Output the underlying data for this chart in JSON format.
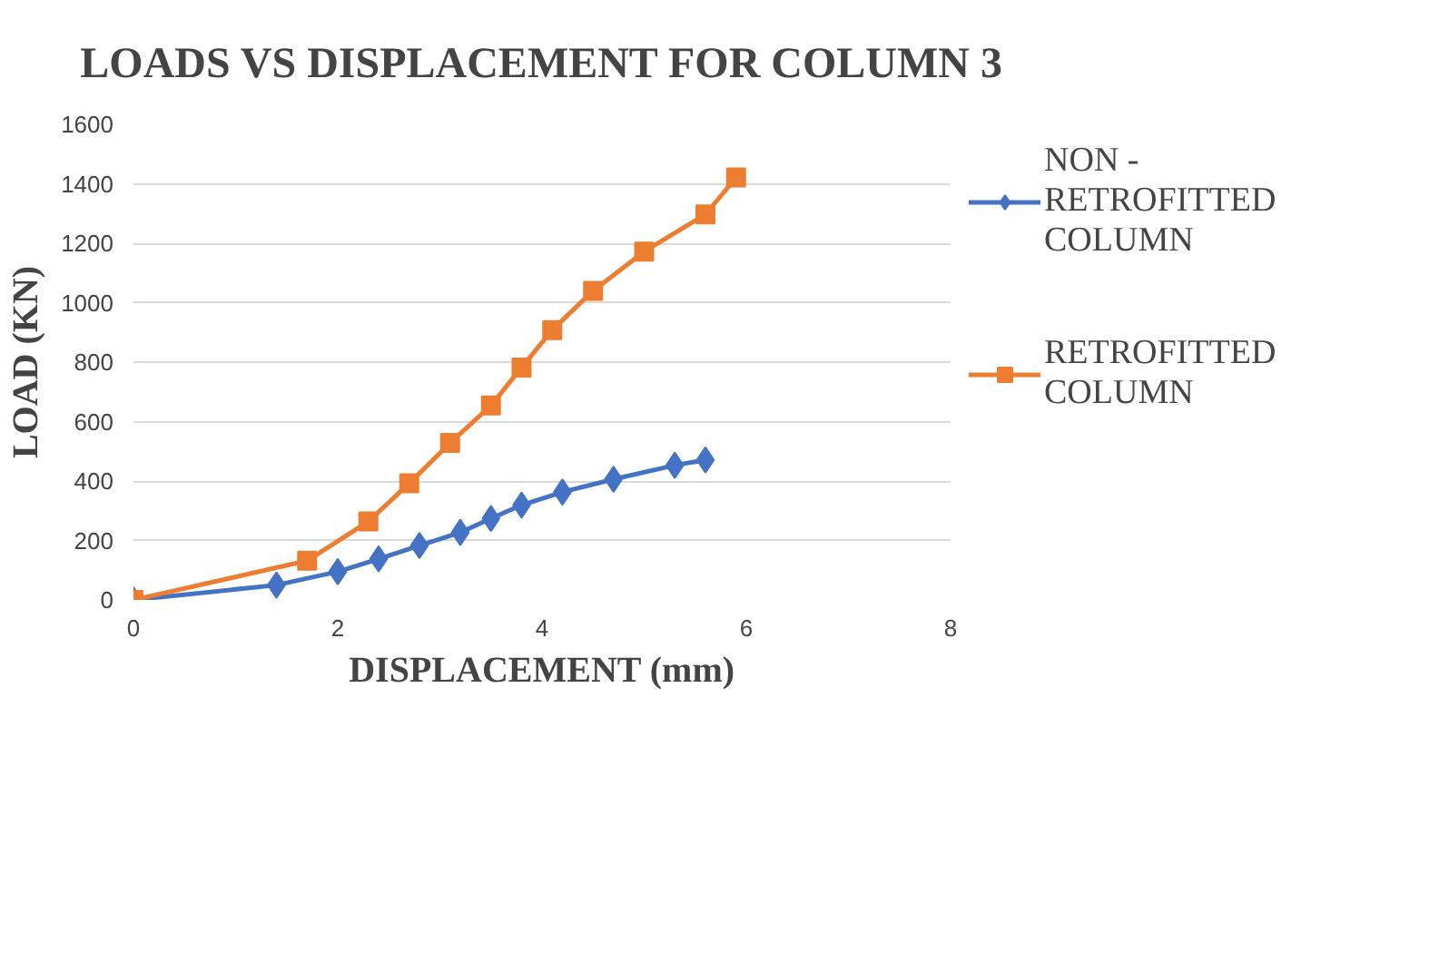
{
  "chart_data": {
    "type": "line",
    "title": "LOADS VS DISPLACEMENT FOR COLUMN 3",
    "xlabel": "DISPLACEMENT (mm)",
    "ylabel": "LOAD (KN)",
    "xlim": [
      0,
      8
    ],
    "xticks": [
      0,
      2,
      4,
      6,
      8
    ],
    "ylim": [
      0,
      1600
    ],
    "yticks": [
      0,
      200,
      400,
      600,
      800,
      1000,
      1200,
      1400,
      1600
    ],
    "grid": "y",
    "legend": "right",
    "series": [
      {
        "name": "NON - RETROFITTED COLUMN",
        "color": "#4472c4",
        "marker": "diamond",
        "x": [
          0,
          1.4,
          2.0,
          2.4,
          2.8,
          3.2,
          3.5,
          3.8,
          4.2,
          4.7,
          5.3,
          5.6
        ],
        "values": [
          0,
          50,
          95,
          138,
          183,
          227,
          274,
          319,
          363,
          406,
          453,
          471
        ]
      },
      {
        "name": "RETROFITTED COLUMN",
        "color": "#ed7d31",
        "marker": "square",
        "x": [
          0,
          1.7,
          2.3,
          2.7,
          3.1,
          3.5,
          3.8,
          4.1,
          4.5,
          5.0,
          5.6,
          5.9
        ],
        "values": [
          0,
          132,
          264,
          392,
          528,
          654,
          782,
          908,
          1040,
          1172,
          1297,
          1421
        ]
      }
    ]
  }
}
